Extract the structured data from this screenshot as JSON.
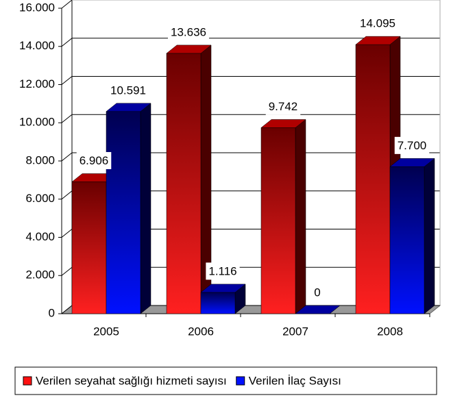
{
  "chart_data": {
    "type": "bar",
    "categories": [
      "2005",
      "2006",
      "2007",
      "2008"
    ],
    "series": [
      {
        "name": "Verilen seyahat sağlığı hizmeti sayısı",
        "color": "#ff1010",
        "values": [
          6906,
          13636,
          9742,
          14095
        ],
        "value_labels": [
          "6.906",
          "13.636",
          "9.742",
          "14.095"
        ]
      },
      {
        "name": "Verilen İlaç Sayısı",
        "color": "#0010ff",
        "values": [
          10591,
          1116,
          0,
          7700
        ],
        "value_labels": [
          "10.591",
          "1.116",
          "0",
          "7.700"
        ]
      }
    ],
    "ylim": [
      0,
      16000
    ],
    "yticks": [
      0,
      {
        "value": 2000,
        "label": "2.000"
      },
      {
        "value": 4000,
        "label": "4.000"
      },
      {
        "value": 6000,
        "label": "6.000"
      },
      {
        "value": 8000,
        "label": "8.000"
      },
      {
        "value": 10000,
        "label": "10.000"
      },
      {
        "value": 12000,
        "label": "12.000"
      },
      {
        "value": 14000,
        "label": "14.000"
      },
      {
        "value": 16000,
        "label": "16.000"
      }
    ],
    "grid": true,
    "legend": "bottom"
  }
}
